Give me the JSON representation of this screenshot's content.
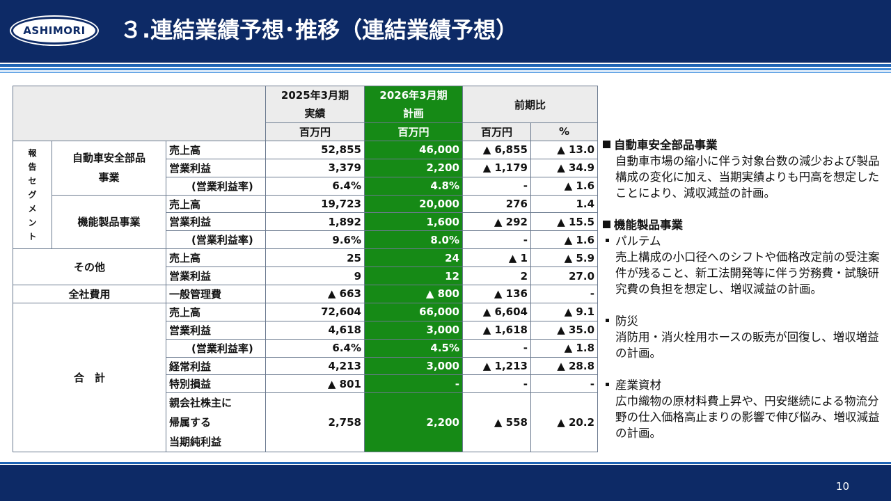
{
  "header": {
    "logo_text": "ASHIMORI",
    "title": "３.連結業績予想･推移（連結業績予想）"
  },
  "table": {
    "col_fy2025_line1": "2025年3月期",
    "col_fy2025_line2": "実績",
    "col_fy2026_line1": "2026年3月期",
    "col_fy2026_line2": "計画",
    "col_yoy": "前期比",
    "unit_million_yen": "百万円",
    "unit_percent": "%",
    "segment_label_chars": [
      "報",
      "告",
      "セ",
      "グ",
      "メ",
      "ン",
      "ト"
    ],
    "seg_auto_line1": "自動車安全部品",
    "seg_auto_line2": "事業",
    "seg_func": "機能製品事業",
    "seg_other": "その他",
    "seg_corporate": "全社費用",
    "seg_total": "合　計",
    "rows": [
      {
        "item": "売上高",
        "fy2025": "52,855",
        "fy2026": "46,000",
        "diff": "▲ 6,855",
        "pct": "▲ 13.0"
      },
      {
        "item": "営業利益",
        "fy2025": "3,379",
        "fy2026": "2,200",
        "diff": "▲ 1,179",
        "pct": "▲ 34.9"
      },
      {
        "item": "(営業利益率)",
        "fy2025": "6.4%",
        "fy2026": "4.8%",
        "diff": "-",
        "pct": "▲ 1.6"
      },
      {
        "item": "売上高",
        "fy2025": "19,723",
        "fy2026": "20,000",
        "diff": "276",
        "pct": "1.4"
      },
      {
        "item": "営業利益",
        "fy2025": "1,892",
        "fy2026": "1,600",
        "diff": "▲ 292",
        "pct": "▲ 15.5"
      },
      {
        "item": "(営業利益率)",
        "fy2025": "9.6%",
        "fy2026": "8.0%",
        "diff": "-",
        "pct": "▲ 1.6"
      },
      {
        "item": "売上高",
        "fy2025": "25",
        "fy2026": "24",
        "diff": "▲ 1",
        "pct": "▲ 5.9"
      },
      {
        "item": "営業利益",
        "fy2025": "9",
        "fy2026": "12",
        "diff": "2",
        "pct": "27.0"
      },
      {
        "item": "一般管理費",
        "fy2025": "▲ 663",
        "fy2026": "▲ 800",
        "diff": "▲ 136",
        "pct": "-"
      },
      {
        "item": "売上高",
        "fy2025": "72,604",
        "fy2026": "66,000",
        "diff": "▲ 6,604",
        "pct": "▲ 9.1"
      },
      {
        "item": "営業利益",
        "fy2025": "4,618",
        "fy2026": "3,000",
        "diff": "▲ 1,618",
        "pct": "▲ 35.0"
      },
      {
        "item": "(営業利益率)",
        "fy2025": "6.4%",
        "fy2026": "4.5%",
        "diff": "-",
        "pct": "▲ 1.8"
      },
      {
        "item": "経常利益",
        "fy2025": "4,213",
        "fy2026": "3,000",
        "diff": "▲ 1,213",
        "pct": "▲ 28.8"
      },
      {
        "item": "特別損益",
        "fy2025": "▲ 801",
        "fy2026": "-",
        "diff": "-",
        "pct": "-"
      },
      {
        "item_lines": [
          "親会社株主に",
          "帰属する",
          "当期純利益"
        ],
        "fy2025": "2,758",
        "fy2026": "2,200",
        "diff": "▲ 558",
        "pct": "▲ 20.2"
      }
    ]
  },
  "notes": {
    "auto_heading": "自動車安全部品事業",
    "auto_body": "自動車市場の縮小に伴う対象台数の減少および製品構成の変化に加え、当期実績よりも円高を想定したことにより、減収減益の計画。",
    "func_heading": "機能製品事業",
    "paltem_title": "パルテム",
    "paltem_body": "売上構成の小口径へのシフトや価格改定前の受注案件が残ること、新工法開発等に伴う労務費・試験研究費の負担を想定し、増収減益の計画。",
    "bousai_title": "防災",
    "bousai_body": "消防用・消火栓用ホースの販売が回復し、増収増益の計画。",
    "sangyo_title": "産業資材",
    "sangyo_body": "広巾織物の原材料費上昇や、円安継続による物流分野の仕入価格高止まりの影響で伸び悩み、増収減益の計画。"
  },
  "footer": {
    "page_number": "10"
  }
}
